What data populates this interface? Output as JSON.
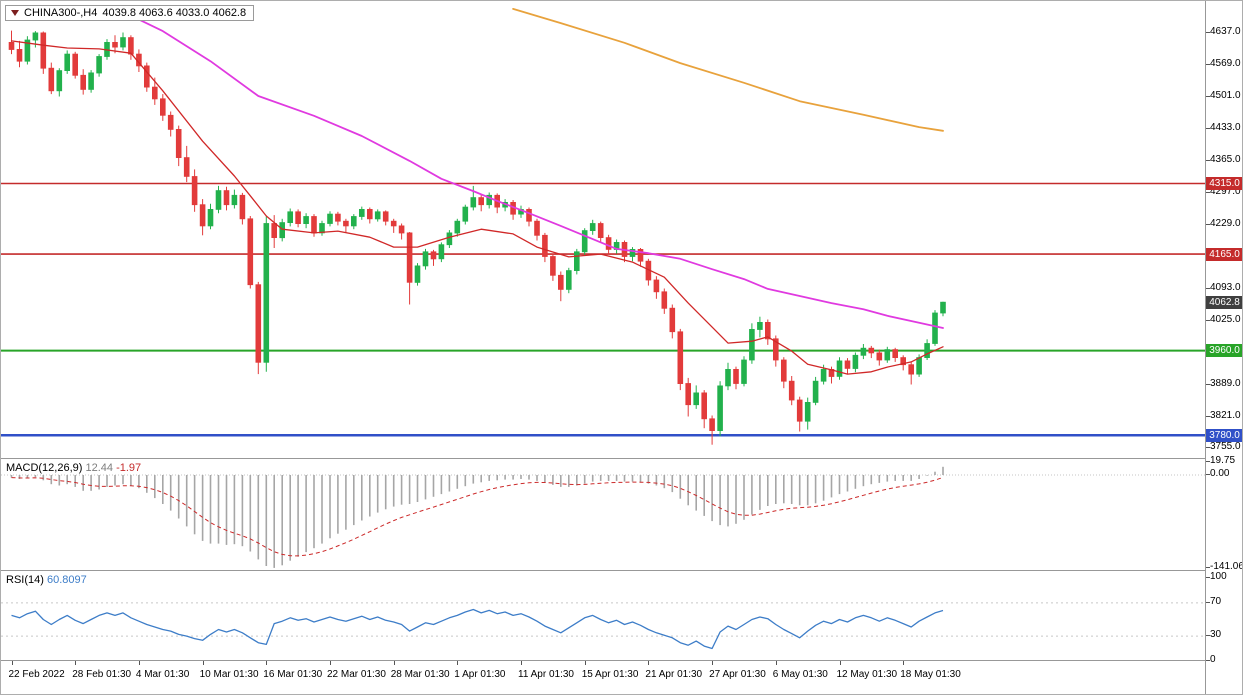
{
  "header": {
    "symbol_period": "CHINA300-,H4",
    "ohlc_text": "4039.8 4063.6 4033.0 4062.8"
  },
  "colors": {
    "bull": "#22b14c",
    "bear": "#e23b3b",
    "macd_hist": "#a6a6a6",
    "macd_signal": "#cc2a2a",
    "rsi_line": "#3d7dc8",
    "badge_current_bg": "#3f3f3f"
  },
  "chart_data": {
    "type": "candlestick",
    "symbol": "CHINA300-",
    "timeframe": "H4",
    "last_ohlc": {
      "open": 4039.8,
      "high": 4063.6,
      "low": 4033.0,
      "close": 4062.8
    },
    "price_axis_labels": [
      {
        "text": "4637.0",
        "price": 4637
      },
      {
        "text": "4569.0",
        "price": 4569
      },
      {
        "text": "4501.0",
        "price": 4501
      },
      {
        "text": "4433.0",
        "price": 4433
      },
      {
        "text": "4365.0",
        "price": 4365
      },
      {
        "text": "4297.0",
        "price": 4297
      },
      {
        "text": "4229.0",
        "price": 4229
      },
      {
        "text": "4093.0",
        "price": 4093
      },
      {
        "text": "4025.0",
        "price": 4025
      },
      {
        "text": "3889.0",
        "price": 3889
      },
      {
        "text": "3821.0",
        "price": 3821
      },
      {
        "text": "3755.0",
        "price": 3755
      }
    ],
    "time_ticks": [
      {
        "index": 0,
        "text": "22 Feb 2022"
      },
      {
        "index": 8,
        "text": "28 Feb 01:30"
      },
      {
        "index": 16,
        "text": "4 Mar 01:30"
      },
      {
        "index": 24,
        "text": "10 Mar 01:30"
      },
      {
        "index": 32,
        "text": "16 Mar 01:30"
      },
      {
        "index": 40,
        "text": "22 Mar 01:30"
      },
      {
        "index": 48,
        "text": "28 Mar 01:30"
      },
      {
        "index": 56,
        "text": "1 Apr 01:30"
      },
      {
        "index": 64,
        "text": "11 Apr 01:30"
      },
      {
        "index": 72,
        "text": "15 Apr 01:30"
      },
      {
        "index": 80,
        "text": "21 Apr 01:30"
      },
      {
        "index": 88,
        "text": "27 Apr 01:30"
      },
      {
        "index": 96,
        "text": "6 May 01:30"
      },
      {
        "index": 104,
        "text": "12 May 01:30"
      },
      {
        "index": 112,
        "text": "18 May 01:30"
      }
    ],
    "hlines": [
      {
        "label": "4315.0",
        "price": 4315,
        "color": "#c42b2b",
        "width": 1.6
      },
      {
        "label": "4165.0",
        "price": 4165,
        "color": "#c42b2b",
        "width": 1.6
      },
      {
        "label": "3960.0",
        "price": 3960,
        "color": "#28a428",
        "width": 2
      },
      {
        "label": "3780.0",
        "price": 3780,
        "color": "#3050c8",
        "width": 2.5
      }
    ],
    "current_price_badge": {
      "text": "4062.8",
      "price": 4062.8
    },
    "candles": [
      [
        4615,
        4640,
        4590,
        4600
      ],
      [
        4600,
        4618,
        4562,
        4575
      ],
      [
        4575,
        4628,
        4568,
        4620
      ],
      [
        4620,
        4639,
        4604,
        4635
      ],
      [
        4635,
        4638,
        4548,
        4560
      ],
      [
        4560,
        4572,
        4505,
        4512
      ],
      [
        4512,
        4560,
        4500,
        4555
      ],
      [
        4555,
        4598,
        4548,
        4590
      ],
      [
        4590,
        4595,
        4538,
        4545
      ],
      [
        4545,
        4558,
        4504,
        4515
      ],
      [
        4515,
        4556,
        4508,
        4550
      ],
      [
        4550,
        4590,
        4542,
        4585
      ],
      [
        4585,
        4622,
        4578,
        4615
      ],
      [
        4615,
        4630,
        4592,
        4605
      ],
      [
        4605,
        4636,
        4598,
        4625
      ],
      [
        4625,
        4630,
        4578,
        4590
      ],
      [
        4590,
        4600,
        4552,
        4565
      ],
      [
        4565,
        4572,
        4510,
        4520
      ],
      [
        4520,
        4540,
        4482,
        4495
      ],
      [
        4495,
        4505,
        4448,
        4460
      ],
      [
        4460,
        4468,
        4415,
        4430
      ],
      [
        4430,
        4438,
        4352,
        4370
      ],
      [
        4370,
        4395,
        4318,
        4330
      ],
      [
        4330,
        4345,
        4255,
        4270
      ],
      [
        4270,
        4282,
        4205,
        4225
      ],
      [
        4225,
        4272,
        4218,
        4260
      ],
      [
        4260,
        4310,
        4252,
        4300
      ],
      [
        4300,
        4308,
        4258,
        4270
      ],
      [
        4270,
        4302,
        4262,
        4290
      ],
      [
        4290,
        4295,
        4228,
        4240
      ],
      [
        4240,
        4246,
        4092,
        4100
      ],
      [
        4100,
        4106,
        3910,
        3935
      ],
      [
        3935,
        4245,
        3915,
        4230
      ],
      [
        4230,
        4248,
        4178,
        4200
      ],
      [
        4200,
        4240,
        4192,
        4232
      ],
      [
        4232,
        4262,
        4224,
        4255
      ],
      [
        4255,
        4260,
        4222,
        4230
      ],
      [
        4230,
        4252,
        4220,
        4245
      ],
      [
        4245,
        4250,
        4202,
        4210
      ],
      [
        4210,
        4236,
        4204,
        4230
      ],
      [
        4230,
        4256,
        4224,
        4250
      ],
      [
        4250,
        4255,
        4226,
        4235
      ],
      [
        4235,
        4240,
        4210,
        4225
      ],
      [
        4225,
        4250,
        4218,
        4245
      ],
      [
        4245,
        4266,
        4238,
        4260
      ],
      [
        4260,
        4264,
        4230,
        4240
      ],
      [
        4240,
        4260,
        4234,
        4255
      ],
      [
        4255,
        4258,
        4226,
        4235
      ],
      [
        4235,
        4240,
        4210,
        4225
      ],
      [
        4225,
        4230,
        4196,
        4210
      ],
      [
        4210,
        4212,
        4058,
        4105
      ],
      [
        4105,
        4146,
        4098,
        4140
      ],
      [
        4140,
        4176,
        4132,
        4170
      ],
      [
        4170,
        4174,
        4140,
        4155
      ],
      [
        4155,
        4190,
        4148,
        4185
      ],
      [
        4185,
        4216,
        4178,
        4210
      ],
      [
        4210,
        4240,
        4202,
        4235
      ],
      [
        4235,
        4270,
        4228,
        4265
      ],
      [
        4265,
        4310,
        4258,
        4285
      ],
      [
        4285,
        4292,
        4256,
        4270
      ],
      [
        4270,
        4296,
        4262,
        4290
      ],
      [
        4290,
        4294,
        4252,
        4265
      ],
      [
        4265,
        4282,
        4256,
        4275
      ],
      [
        4275,
        4280,
        4238,
        4250
      ],
      [
        4250,
        4268,
        4242,
        4260
      ],
      [
        4260,
        4264,
        4224,
        4235
      ],
      [
        4235,
        4240,
        4194,
        4205
      ],
      [
        4205,
        4210,
        4148,
        4160
      ],
      [
        4160,
        4166,
        4108,
        4120
      ],
      [
        4120,
        4128,
        4065,
        4090
      ],
      [
        4090,
        4136,
        4082,
        4130
      ],
      [
        4130,
        4176,
        4122,
        4170
      ],
      [
        4170,
        4220,
        4162,
        4215
      ],
      [
        4215,
        4238,
        4206,
        4230
      ],
      [
        4230,
        4234,
        4190,
        4200
      ],
      [
        4200,
        4206,
        4164,
        4175
      ],
      [
        4175,
        4196,
        4166,
        4190
      ],
      [
        4190,
        4194,
        4148,
        4160
      ],
      [
        4160,
        4180,
        4150,
        4175
      ],
      [
        4175,
        4178,
        4138,
        4150
      ],
      [
        4150,
        4155,
        4098,
        4110
      ],
      [
        4110,
        4118,
        4070,
        4085
      ],
      [
        4085,
        4092,
        4038,
        4050
      ],
      [
        4050,
        4058,
        3986,
        4000
      ],
      [
        4000,
        4006,
        3876,
        3890
      ],
      [
        3890,
        3902,
        3820,
        3845
      ],
      [
        3845,
        3886,
        3836,
        3870
      ],
      [
        3870,
        3876,
        3795,
        3815
      ],
      [
        3815,
        3822,
        3760,
        3790
      ],
      [
        3790,
        3895,
        3778,
        3885
      ],
      [
        3885,
        3934,
        3876,
        3920
      ],
      [
        3920,
        3926,
        3878,
        3890
      ],
      [
        3890,
        3948,
        3884,
        3940
      ],
      [
        3940,
        4018,
        3932,
        4005
      ],
      [
        4005,
        4032,
        3988,
        4020
      ],
      [
        4020,
        4026,
        3972,
        3985
      ],
      [
        3985,
        3992,
        3926,
        3940
      ],
      [
        3940,
        3946,
        3880,
        3895
      ],
      [
        3895,
        3906,
        3844,
        3855
      ],
      [
        3855,
        3862,
        3788,
        3810
      ],
      [
        3810,
        3860,
        3792,
        3850
      ],
      [
        3850,
        3904,
        3844,
        3895
      ],
      [
        3895,
        3930,
        3888,
        3920
      ],
      [
        3920,
        3926,
        3890,
        3905
      ],
      [
        3905,
        3946,
        3898,
        3938
      ],
      [
        3938,
        3944,
        3910,
        3922
      ],
      [
        3922,
        3956,
        3914,
        3950
      ],
      [
        3950,
        3974,
        3942,
        3965
      ],
      [
        3965,
        3970,
        3944,
        3955
      ],
      [
        3955,
        3962,
        3928,
        3940
      ],
      [
        3940,
        3968,
        3934,
        3962
      ],
      [
        3962,
        3966,
        3936,
        3945
      ],
      [
        3945,
        3950,
        3918,
        3930
      ],
      [
        3930,
        3936,
        3888,
        3910
      ],
      [
        3910,
        3952,
        3904,
        3945
      ],
      [
        3945,
        3984,
        3940,
        3975
      ],
      [
        3975,
        4046,
        3970,
        4039.8
      ],
      [
        4039.8,
        4063.6,
        4033.0,
        4062.8
      ]
    ],
    "ma_lines": [
      {
        "name": "fast-ma-red",
        "color": "#d02828",
        "width": 1.3,
        "points": [
          [
            0,
            4618
          ],
          [
            4,
            4609
          ],
          [
            7,
            4603
          ],
          [
            11,
            4601
          ],
          [
            15,
            4592
          ],
          [
            19,
            4512
          ],
          [
            24,
            4405
          ],
          [
            28,
            4331
          ],
          [
            30,
            4289
          ],
          [
            32,
            4246
          ],
          [
            34,
            4218
          ],
          [
            38,
            4210
          ],
          [
            41,
            4214
          ],
          [
            45,
            4201
          ],
          [
            48,
            4180
          ],
          [
            51,
            4180
          ],
          [
            55,
            4201
          ],
          [
            59,
            4218
          ],
          [
            63,
            4208
          ],
          [
            66,
            4180
          ],
          [
            70,
            4159
          ],
          [
            74,
            4165
          ],
          [
            78,
            4148
          ],
          [
            82,
            4116
          ],
          [
            85,
            4061
          ],
          [
            88,
            4010
          ],
          [
            90,
            3976
          ],
          [
            93,
            3980
          ],
          [
            95,
            3989
          ],
          [
            98,
            3959
          ],
          [
            100,
            3931
          ],
          [
            103,
            3919
          ],
          [
            105,
            3910
          ],
          [
            108,
            3915
          ],
          [
            110,
            3925
          ],
          [
            113,
            3936
          ],
          [
            115,
            3953
          ],
          [
            117,
            3968
          ]
        ]
      },
      {
        "name": "mid-ma-magenta",
        "color": "#e03ae0",
        "width": 1.8,
        "points": [
          [
            13,
            4688
          ],
          [
            19,
            4639
          ],
          [
            25,
            4575
          ],
          [
            31,
            4501
          ],
          [
            38,
            4459
          ],
          [
            44,
            4416
          ],
          [
            50,
            4363
          ],
          [
            54,
            4325
          ],
          [
            58,
            4299
          ],
          [
            61,
            4278
          ],
          [
            65,
            4252
          ],
          [
            69,
            4225
          ],
          [
            73,
            4197
          ],
          [
            76,
            4176
          ],
          [
            80,
            4167
          ],
          [
            84,
            4155
          ],
          [
            88,
            4133
          ],
          [
            92,
            4112
          ],
          [
            95,
            4091
          ],
          [
            99,
            4076
          ],
          [
            103,
            4061
          ],
          [
            107,
            4048
          ],
          [
            110,
            4034
          ],
          [
            114,
            4019
          ],
          [
            117,
            4008
          ]
        ]
      },
      {
        "name": "slow-ma-orange",
        "color": "#e8a23c",
        "width": 1.8,
        "points": [
          [
            63,
            4686
          ],
          [
            69,
            4656
          ],
          [
            77,
            4614
          ],
          [
            84,
            4571
          ],
          [
            92,
            4529
          ],
          [
            99,
            4490
          ],
          [
            107,
            4461
          ],
          [
            114,
            4435
          ],
          [
            117,
            4427
          ]
        ]
      }
    ],
    "macd": {
      "label": "MACD(12,26,9)",
      "main_value": "12.44",
      "signal_value": "-1.97",
      "axis": [
        {
          "text": "19.75",
          "value": 19.75
        },
        {
          "text": "0.00",
          "value": 0
        },
        {
          "text": "-141.06",
          "value": -141.06
        }
      ],
      "histogram": [
        -4,
        -6,
        -5,
        -3,
        -8,
        -14,
        -16,
        -14,
        -18,
        -24,
        -24,
        -22,
        -18,
        -16,
        -14,
        -16,
        -20,
        -27,
        -35,
        -44,
        -54,
        -66,
        -78,
        -90,
        -100,
        -104,
        -104,
        -106,
        -105,
        -108,
        -116,
        -128,
        -138,
        -141,
        -137,
        -130,
        -124,
        -117,
        -111,
        -104,
        -96,
        -89,
        -83,
        -76,
        -69,
        -63,
        -57,
        -52,
        -48,
        -45,
        -44,
        -41,
        -37,
        -33,
        -29,
        -25,
        -21,
        -17,
        -13,
        -11,
        -9,
        -8,
        -7,
        -7,
        -6,
        -7,
        -9,
        -12,
        -15,
        -18,
        -18,
        -16,
        -13,
        -10,
        -9,
        -9,
        -9,
        -10,
        -10,
        -11,
        -13,
        -16,
        -20,
        -26,
        -36,
        -46,
        -54,
        -62,
        -70,
        -76,
        -78,
        -74,
        -68,
        -60,
        -53,
        -47,
        -44,
        -43,
        -44,
        -46,
        -46,
        -43,
        -39,
        -34,
        -29,
        -25,
        -21,
        -17,
        -14,
        -12,
        -10,
        -9,
        -9,
        -9,
        -6,
        -1,
        5,
        12.44
      ]
    },
    "rsi": {
      "label": "RSI(14)",
      "value": "60.8097",
      "axis": [
        {
          "text": "100",
          "value": 100
        },
        {
          "text": "70",
          "value": 70
        },
        {
          "text": "30",
          "value": 30
        },
        {
          "text": "0",
          "value": 0
        }
      ],
      "levels": [
        70,
        30
      ],
      "values": [
        55,
        52,
        57,
        60,
        50,
        44,
        50,
        55,
        49,
        45,
        50,
        55,
        58,
        55,
        58,
        52,
        48,
        44,
        41,
        38,
        36,
        32,
        30,
        27,
        25,
        32,
        38,
        35,
        38,
        34,
        28,
        22,
        20,
        45,
        48,
        52,
        49,
        51,
        47,
        50,
        53,
        50,
        48,
        51,
        54,
        50,
        53,
        49,
        47,
        44,
        36,
        41,
        46,
        44,
        48,
        52,
        55,
        59,
        62,
        58,
        61,
        57,
        59,
        55,
        57,
        53,
        48,
        42,
        38,
        34,
        40,
        46,
        52,
        55,
        50,
        46,
        49,
        44,
        47,
        43,
        38,
        34,
        31,
        28,
        22,
        19,
        24,
        18,
        15,
        35,
        42,
        38,
        44,
        50,
        53,
        51,
        44,
        38,
        33,
        28,
        36,
        43,
        48,
        45,
        50,
        47,
        52,
        55,
        52,
        48,
        52,
        49,
        45,
        41,
        48,
        53,
        58,
        60.8
      ]
    }
  }
}
